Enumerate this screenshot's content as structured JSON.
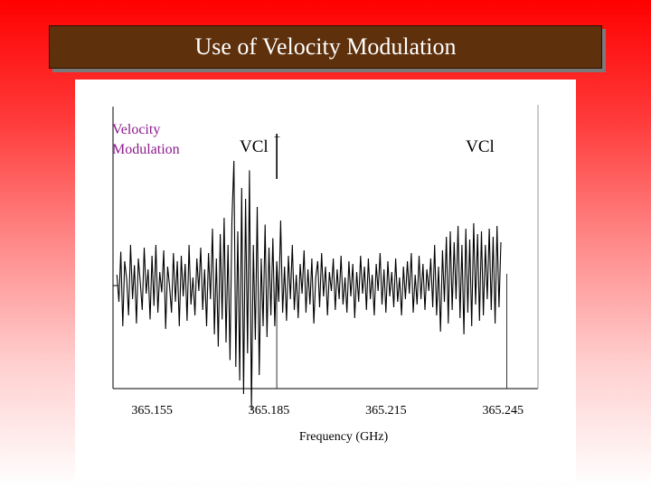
{
  "slide": {
    "title": "Use of Velocity Modulation"
  },
  "colors": {
    "title_bg": "#5e300b",
    "title_text": "#ffffff",
    "label_purple": "#8b1a8b",
    "trace": "#000000"
  },
  "chart_data": {
    "type": "line",
    "title": "",
    "xlabel": "Frequency (GHz)",
    "ylabel": "",
    "xlim": [
      365.145,
      365.254
    ],
    "ylim": [
      -1.0,
      1.0
    ],
    "xticks": [
      "365.155",
      "365.185",
      "365.215",
      "365.245"
    ],
    "xtick_values": [
      365.155,
      365.185,
      365.215,
      365.245
    ],
    "side_label_line1": "Velocity",
    "side_label_line2": "Modulation",
    "annotations": [
      {
        "text": "VCl",
        "superscript": "−",
        "x": 365.183
      },
      {
        "text": "VCl",
        "superscript": "",
        "x": 365.241
      }
    ],
    "markers": [
      365.187,
      365.246
    ],
    "baseline": 0.0,
    "series": [
      {
        "name": "spectrum",
        "x_start": 365.146,
        "x_step": 0.0005,
        "values": [
          0.08,
          -0.12,
          0.25,
          -0.3,
          0.18,
          0.05,
          -0.22,
          0.3,
          -0.1,
          0.15,
          -0.28,
          0.2,
          0.02,
          -0.18,
          0.28,
          -0.06,
          0.12,
          -0.25,
          0.22,
          -0.15,
          0.3,
          -0.2,
          0.1,
          -0.05,
          0.26,
          -0.32,
          0.14,
          0.0,
          -0.2,
          0.24,
          -0.12,
          0.18,
          -0.3,
          0.22,
          -0.08,
          0.16,
          -0.26,
          0.3,
          -0.14,
          0.06,
          -0.22,
          0.2,
          -0.04,
          0.28,
          -0.18,
          0.12,
          -0.3,
          0.24,
          -0.1,
          0.42,
          -0.36,
          0.2,
          -0.45,
          0.38,
          -0.25,
          0.5,
          -0.42,
          0.3,
          -0.55,
          0.48,
          0.92,
          -0.6,
          0.4,
          -0.7,
          0.72,
          -0.8,
          0.64,
          -0.5,
          0.85,
          -0.92,
          0.3,
          -0.4,
          0.58,
          -0.66,
          0.2,
          -0.3,
          0.45,
          -0.38,
          0.28,
          -0.22,
          0.35,
          -0.3,
          0.18,
          -0.12,
          0.48,
          -0.2,
          0.14,
          -0.26,
          0.22,
          -0.1,
          0.3,
          -0.18,
          0.08,
          -0.24,
          0.16,
          -0.06,
          0.26,
          -0.2,
          0.12,
          -0.14,
          0.2,
          -0.28,
          0.06,
          0.18,
          -0.16,
          0.24,
          -0.08,
          0.14,
          -0.22,
          0.1,
          -0.04,
          0.2,
          -0.18,
          0.12,
          -0.1,
          0.22,
          -0.14,
          0.06,
          -0.2,
          0.18,
          -0.08,
          0.16,
          -0.24,
          0.1,
          -0.12,
          0.22,
          -0.06,
          0.14,
          -0.18,
          0.2,
          -0.1,
          0.08,
          -0.22,
          0.16,
          -0.04,
          0.24,
          -0.14,
          0.12,
          -0.2,
          0.18,
          -0.08,
          0.1,
          -0.16,
          0.2,
          -0.12,
          0.06,
          -0.22,
          0.14,
          -0.1,
          0.18,
          -0.06,
          0.24,
          -0.2,
          0.08,
          -0.14,
          0.22,
          -0.1,
          0.16,
          -0.18,
          0.12,
          -0.04,
          0.2,
          -0.16,
          0.3,
          -0.22,
          0.14,
          -0.34,
          0.26,
          -0.12,
          0.36,
          -0.28,
          0.4,
          -0.18,
          0.32,
          -0.1,
          0.44,
          -0.24,
          0.3,
          -0.36,
          0.42,
          -0.2,
          0.34,
          -0.3,
          0.46,
          -0.14,
          0.38,
          -0.26,
          0.4,
          -0.22,
          0.3,
          -0.1,
          0.42,
          -0.18,
          0.36,
          -0.28,
          0.44,
          -0.16,
          0.32
        ]
      }
    ]
  }
}
